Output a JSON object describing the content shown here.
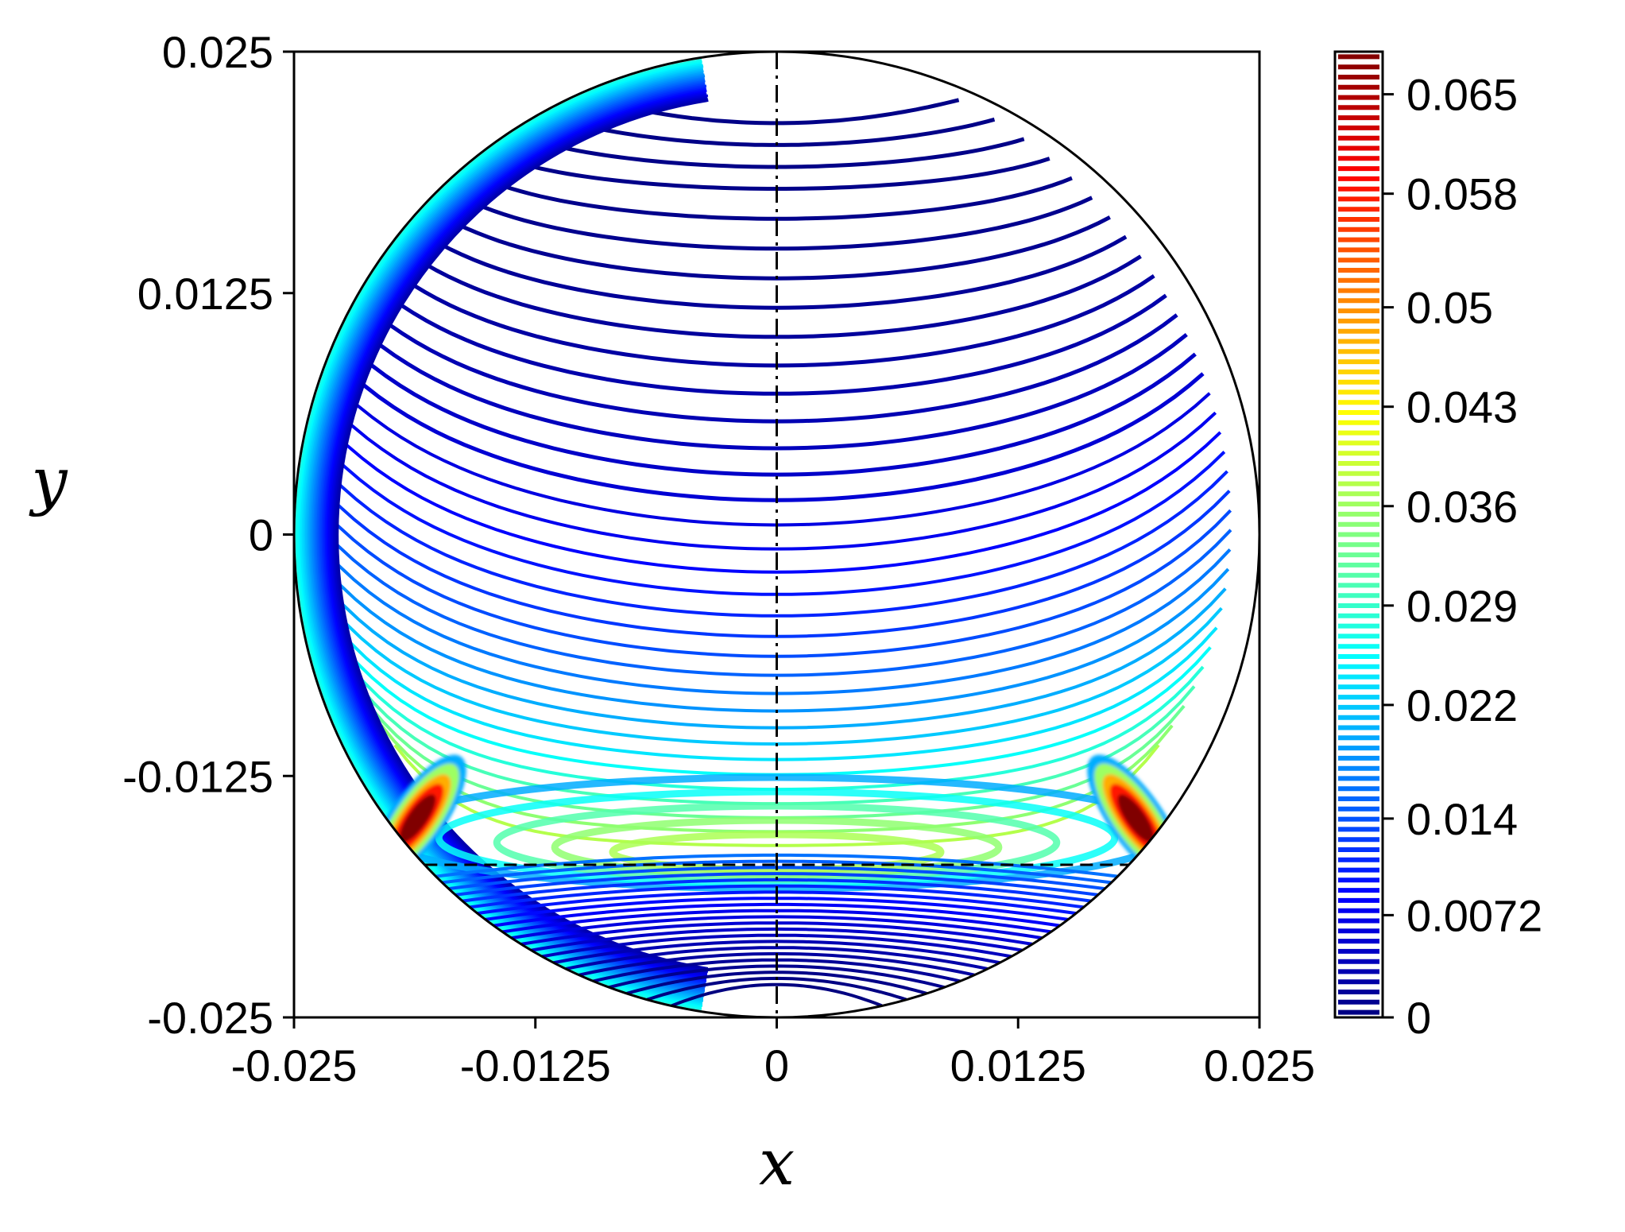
{
  "chart_data": {
    "type": "contour",
    "xlabel": "x",
    "ylabel": "y",
    "xlim": [
      -0.025,
      0.025
    ],
    "ylim": [
      -0.025,
      0.025
    ],
    "x_ticks": [
      "-0.025",
      "-0.0125",
      "0",
      "0.0125",
      "0.025"
    ],
    "y_ticks": [
      "-0.025",
      "-0.0125",
      "0",
      "0.0125",
      "0.025"
    ],
    "x_tick_values": [
      -0.025,
      -0.0125,
      0,
      0.0125,
      0.025
    ],
    "y_tick_values": [
      -0.025,
      -0.0125,
      0,
      0.0125,
      0.025
    ],
    "domain": {
      "shape": "circle",
      "center": [
        0,
        0
      ],
      "radius": 0.025
    },
    "interface_y": -0.0171,
    "symmetry_line_x": 0,
    "levels": {
      "min": 0,
      "max": 0.068,
      "count": 95
    },
    "colormap": "jet",
    "colorbar": {
      "ticks": [
        "0",
        "0.0072",
        "0.014",
        "0.022",
        "0.029",
        "0.036",
        "0.043",
        "0.05",
        "0.058",
        "0.065"
      ],
      "tick_values": [
        0,
        0.0072,
        0.014,
        0.022,
        0.029,
        0.036,
        0.043,
        0.05,
        0.058,
        0.065
      ],
      "range": [
        0,
        0.068
      ]
    },
    "features": {
      "wall_maxima": [
        [
          -0.0186,
          -0.0147
        ],
        [
          0.0186,
          -0.0147
        ]
      ],
      "peak_value": 0.068,
      "bulk_upper_level_range": [
        0.0005,
        0.0075
      ],
      "near_interface_value": 0.037,
      "lower_layer_max": 0.016
    }
  }
}
